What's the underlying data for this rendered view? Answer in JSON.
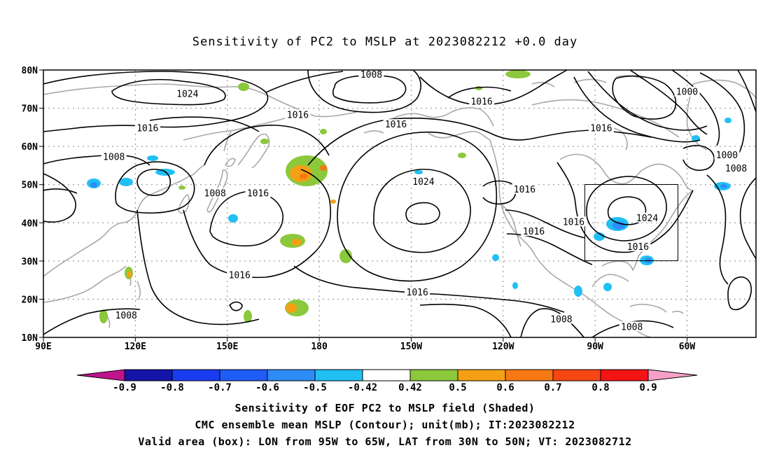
{
  "title": "Sensitivity of PC2 to MSLP at 2023082212 +0.0 day",
  "axes": {
    "lat_labels": [
      "80N",
      "70N",
      "60N",
      "50N",
      "40N",
      "30N",
      "20N",
      "10N"
    ],
    "lon_labels": [
      "90E",
      "120E",
      "150E",
      "180",
      "150W",
      "120W",
      "90W",
      "60W"
    ]
  },
  "contour_labels": [
    {
      "text": "1008",
      "lon": 197,
      "lat": 78.5
    },
    {
      "text": "1024",
      "lon": 137,
      "lat": 73.5
    },
    {
      "text": "1016",
      "lon": 173,
      "lat": 68.0
    },
    {
      "text": "1016",
      "lon": 233,
      "lat": 71.5
    },
    {
      "text": "1000",
      "lon": 300,
      "lat": 74.0
    },
    {
      "text": "1016",
      "lon": 124,
      "lat": 64.5
    },
    {
      "text": "1016",
      "lon": 205,
      "lat": 65.5
    },
    {
      "text": "1016",
      "lon": 272,
      "lat": 64.5
    },
    {
      "text": "1008",
      "lon": 113,
      "lat": 57.0
    },
    {
      "text": "1000",
      "lon": 313,
      "lat": 57.5
    },
    {
      "text": "1008",
      "lon": 316,
      "lat": 54.0
    },
    {
      "text": "1024",
      "lon": 214,
      "lat": 50.5
    },
    {
      "text": "1008",
      "lon": 146,
      "lat": 47.5
    },
    {
      "text": "1016",
      "lon": 160,
      "lat": 47.5
    },
    {
      "text": "1016",
      "lon": 247,
      "lat": 48.5
    },
    {
      "text": "1024",
      "lon": 287,
      "lat": 41.0
    },
    {
      "text": "1016",
      "lon": 263,
      "lat": 40.0
    },
    {
      "text": "1016",
      "lon": 250,
      "lat": 37.5
    },
    {
      "text": "1016",
      "lon": 284,
      "lat": 33.5
    },
    {
      "text": "1016",
      "lon": 154,
      "lat": 26.0
    },
    {
      "text": "1016",
      "lon": 212,
      "lat": 21.5
    },
    {
      "text": "1008",
      "lon": 117,
      "lat": 15.5
    },
    {
      "text": "1008",
      "lon": 259,
      "lat": 14.5
    },
    {
      "text": "1008",
      "lon": 282,
      "lat": 12.5
    }
  ],
  "colorbar": {
    "labels": [
      "-0.9",
      "-0.8",
      "-0.7",
      "-0.6",
      "-0.5",
      "-0.42",
      "0.42",
      "0.5",
      "0.6",
      "0.7",
      "0.8",
      "0.9"
    ],
    "colors": [
      "#1414a8",
      "#1a3cf0",
      "#1f5cf5",
      "#2d8cf5",
      "#20c0f5",
      "#ffffff",
      "#8cc83c",
      "#f5a014",
      "#f57814",
      "#f54614",
      "#f51414"
    ],
    "low_end_color": "#c0148c",
    "high_end_color": "#f5a0c8"
  },
  "valid_box": {
    "lon_from": "95W",
    "lon_to": "65W",
    "lat_from": "30N",
    "lat_to": "50N"
  },
  "captions": [
    "Sensitivity of EOF PC2 to MSLP field (Shaded)",
    "CMC ensemble mean MSLP (Contour); unit(mb); IT:2023082212",
    "Valid area (box): LON from 95W to 65W, LAT from 30N to 50N; VT: 2023082712"
  ]
}
